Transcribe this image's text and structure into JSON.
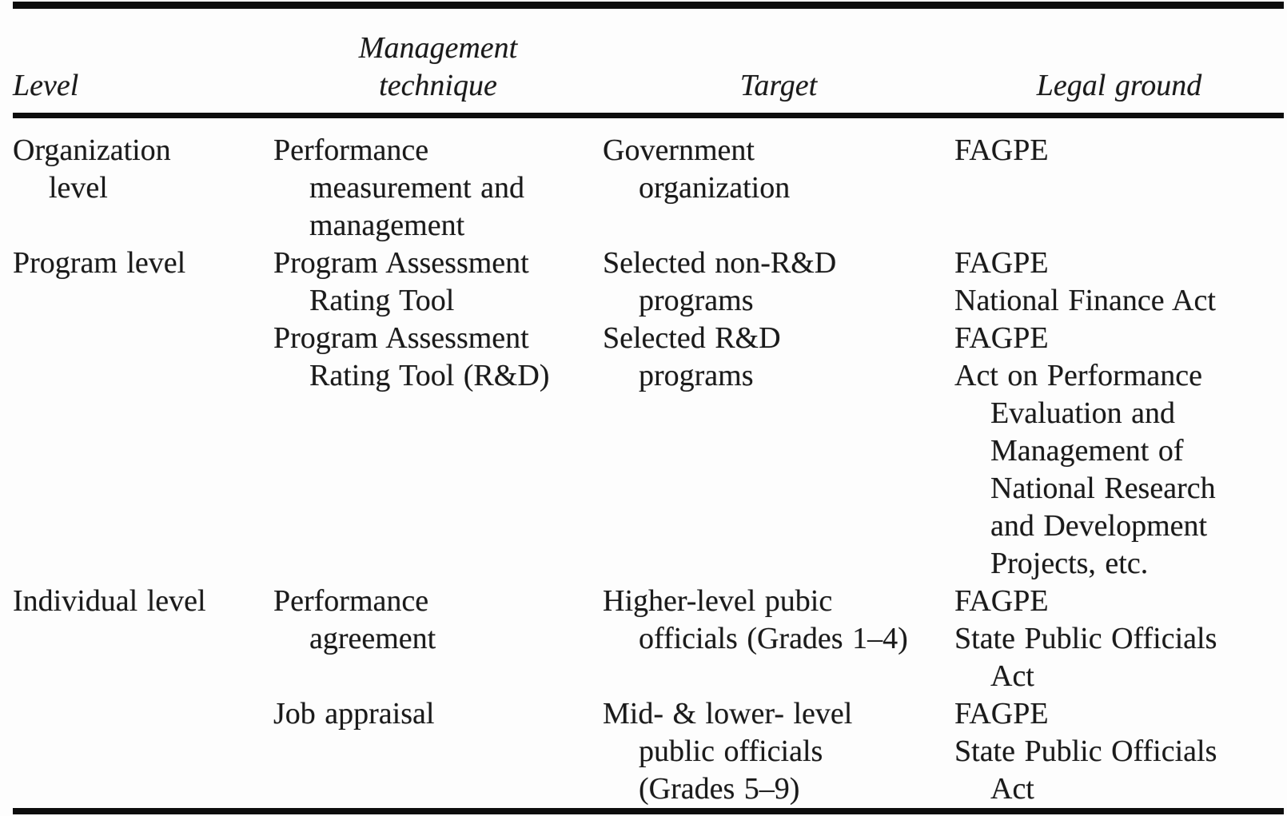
{
  "page": {
    "background_color": "#fdfdfd",
    "text_color": "#1a1a1a",
    "rule_color": "#0d0d0d"
  },
  "header": {
    "level": "Level",
    "technique_line1": "Management",
    "technique_line2": "technique",
    "target": "Target",
    "legal": "Legal ground"
  },
  "rows": [
    {
      "level": [
        "Organization",
        "level"
      ],
      "technique": [
        "Performance",
        "measurement and",
        "management"
      ],
      "target": [
        "Government",
        "organization"
      ],
      "legal": [
        "FAGPE"
      ]
    },
    {
      "level": [
        "Program level"
      ],
      "technique": [
        "Program Assessment",
        "Rating Tool"
      ],
      "target": [
        "Selected non-R&D",
        "programs"
      ],
      "legal": [
        "FAGPE",
        "National Finance Act"
      ]
    },
    {
      "level": [],
      "technique": [
        "Program Assessment",
        "Rating Tool (R&D)"
      ],
      "target": [
        "Selected R&D",
        "programs"
      ],
      "legal": [
        "FAGPE",
        "Act on Performance",
        "Evaluation and",
        "Management of",
        "National Research",
        "and Development",
        "Projects, etc."
      ]
    },
    {
      "level": [
        "Individual level"
      ],
      "technique": [
        "Performance",
        "agreement"
      ],
      "target": [
        "Higher-level pubic",
        "officials (Grades 1–4)"
      ],
      "legal": [
        "FAGPE",
        "State Public Officials",
        "Act"
      ]
    },
    {
      "level": [],
      "technique": [
        "Job appraisal"
      ],
      "target": [
        "Mid- & lower- level",
        "public officials",
        "(Grades 5–9)"
      ],
      "legal": [
        "FAGPE",
        "State Public Officials",
        "Act"
      ]
    }
  ]
}
